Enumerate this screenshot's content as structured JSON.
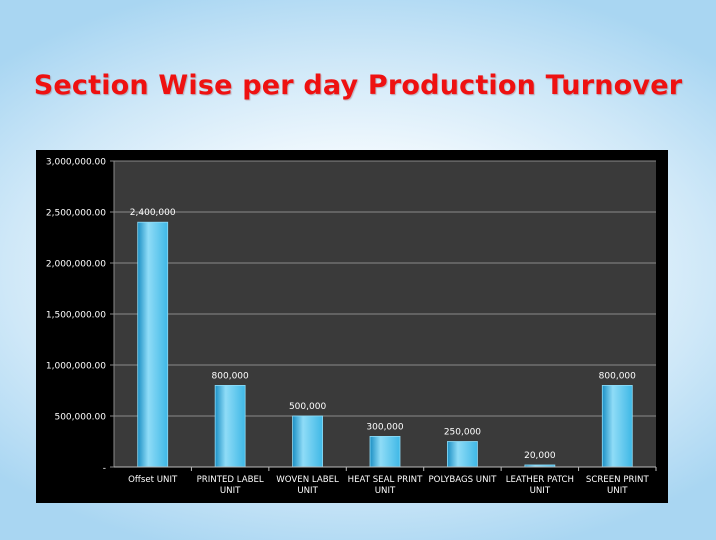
{
  "title": "Section Wise per day Production Turnover",
  "colors": {
    "bar": "#3fb8e6",
    "bar_light": "#8fdcf7",
    "bar_dark": "#1b8fc4",
    "plot_bg": "#3a3a3a",
    "grid": "#8a8a8a",
    "text": "#ffffff",
    "title": "#ee1111"
  },
  "chart_data": {
    "type": "bar",
    "categories": [
      "Offset UNIT",
      "PRINTED LABEL UNIT",
      "WOVEN LABEL UNIT",
      "HEAT SEAL PRINT UNIT",
      "POLYBAGS UNIT",
      "LEATHER PATCH UNIT",
      "SCREEN PRINT UNIT"
    ],
    "category_lines": [
      [
        "Offset UNIT"
      ],
      [
        "PRINTED LABEL",
        "UNIT"
      ],
      [
        "WOVEN LABEL",
        "UNIT"
      ],
      [
        "HEAT SEAL PRINT",
        "UNIT"
      ],
      [
        "POLYBAGS UNIT"
      ],
      [
        "LEATHER PATCH",
        "UNIT"
      ],
      [
        "SCREEN PRINT",
        "UNIT"
      ]
    ],
    "values": [
      2400000,
      800000,
      500000,
      300000,
      250000,
      20000,
      800000
    ],
    "data_labels": [
      "2,400,000",
      "800,000",
      "500,000",
      "300,000",
      "250,000",
      "20,000",
      "800,000"
    ],
    "yticks": [
      0,
      500000,
      1000000,
      1500000,
      2000000,
      2500000,
      3000000
    ],
    "ytick_labels": [
      "-",
      "500,000.00",
      "1,000,000.00",
      "1,500,000.00",
      "2,000,000.00",
      "2,500,000.00",
      "3,000,000.00"
    ],
    "ylim": [
      0,
      3000000
    ],
    "grid": true,
    "legend": "none"
  }
}
